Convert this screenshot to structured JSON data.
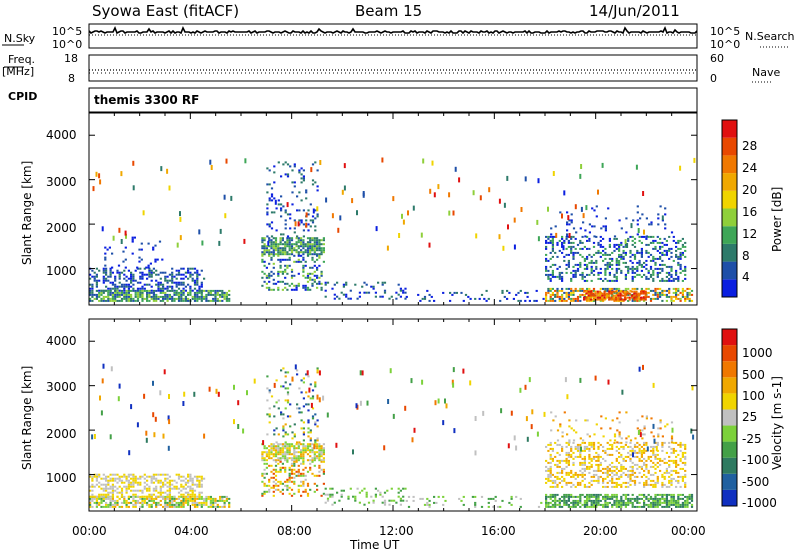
{
  "header": {
    "station": "Syowa East (fitACF)",
    "beam": "Beam 15",
    "date": "14/Jun/2011"
  },
  "status_panels": {
    "nsky_label": "N.Sky",
    "nsearch_label": "N.Search",
    "nsky_ticks": [
      "10^5",
      "10^0"
    ],
    "nsearch_ticks": [
      "10^5",
      "10^0"
    ],
    "freq_label": "Freq.",
    "freq_unit": "[MHz]",
    "freq_ticks": [
      "18",
      "8"
    ],
    "nave_label": "Nave",
    "nave_ticks": [
      "60",
      "0"
    ],
    "cpid_label": "CPID",
    "cpid_value": "themis 3300 RF"
  },
  "chart_data": [
    {
      "type": "heatmap",
      "name": "power",
      "ylabel": "Slant Range [km]",
      "xlabel": "Time UT",
      "x_ticks": [
        "00:00",
        "04:00",
        "08:00",
        "12:00",
        "16:00",
        "20:00",
        "00:00"
      ],
      "xlim_hours": [
        0,
        24
      ],
      "ylim": [
        180,
        4500
      ],
      "y_ticks": [
        1000,
        2000,
        3000,
        4000
      ],
      "colorbar": {
        "label": "Power [dB]",
        "ticks": [
          "4",
          "8",
          "12",
          "16",
          "20",
          "24",
          "28"
        ],
        "colors": [
          "#0a1fe0",
          "#1e4fa8",
          "#2d7a6a",
          "#3ea657",
          "#8fcf3a",
          "#f0d400",
          "#f0a800",
          "#f07800",
          "#e84800",
          "#e01010"
        ]
      },
      "regions": [
        {
          "t0": 0.0,
          "t1": 5.5,
          "r0": 250,
          "r1": 480,
          "level": [
            1,
            4
          ],
          "density": 0.75
        },
        {
          "t0": 0.0,
          "t1": 4.5,
          "r0": 480,
          "r1": 1000,
          "level": [
            0,
            2
          ],
          "density": 0.45
        },
        {
          "t0": 0.6,
          "t1": 3.0,
          "r0": 1000,
          "r1": 1700,
          "level": [
            0,
            1
          ],
          "density": 0.08
        },
        {
          "t0": 6.8,
          "t1": 9.3,
          "r0": 1300,
          "r1": 1700,
          "level": [
            1,
            4
          ],
          "density": 0.75
        },
        {
          "t0": 6.8,
          "t1": 9.3,
          "r0": 500,
          "r1": 1300,
          "level": [
            0,
            4
          ],
          "density": 0.35
        },
        {
          "t0": 7.0,
          "t1": 9.0,
          "r0": 1700,
          "r1": 3400,
          "level": [
            0,
            2
          ],
          "density": 0.15
        },
        {
          "t0": 9.3,
          "t1": 12.5,
          "r0": 300,
          "r1": 700,
          "level": [
            0,
            2
          ],
          "density": 0.2
        },
        {
          "t0": 12.5,
          "t1": 18.0,
          "r0": 250,
          "r1": 500,
          "level": [
            0,
            2
          ],
          "density": 0.12
        },
        {
          "t0": 18.0,
          "t1": 23.8,
          "r0": 250,
          "r1": 550,
          "level": [
            1,
            8
          ],
          "density": 0.6
        },
        {
          "t0": 19.5,
          "t1": 22.0,
          "r0": 280,
          "r1": 480,
          "level": [
            6,
            9
          ],
          "density": 0.8
        },
        {
          "t0": 18.0,
          "t1": 23.5,
          "r0": 700,
          "r1": 1700,
          "level": [
            0,
            3
          ],
          "density": 0.35
        },
        {
          "t0": 18.2,
          "t1": 23.0,
          "r0": 1700,
          "r1": 2400,
          "level": [
            0,
            1
          ],
          "density": 0.08
        }
      ]
    },
    {
      "type": "heatmap",
      "name": "velocity",
      "ylabel": "Slant Range [km]",
      "xlabel": "Time UT",
      "x_ticks": [
        "00:00",
        "04:00",
        "08:00",
        "12:00",
        "16:00",
        "20:00",
        "00:00"
      ],
      "xlim_hours": [
        0,
        24
      ],
      "ylim": [
        180,
        4500
      ],
      "y_ticks": [
        1000,
        2000,
        3000,
        4000
      ],
      "colorbar": {
        "label": "Velocity [m s-1]",
        "ticks": [
          "1000",
          "500",
          "100",
          "25",
          "-25",
          "-100",
          "-500",
          "-1000"
        ],
        "colors": [
          "#1030c0",
          "#2060a0",
          "#2e7a60",
          "#43a047",
          "#7cd13a",
          "#c0c0c0",
          "#f0d400",
          "#f0a800",
          "#f07800",
          "#e84800",
          "#e01010"
        ]
      },
      "regions": [
        {
          "t0": 0.0,
          "t1": 5.5,
          "r0": 250,
          "r1": 480,
          "level": [
            3,
            7
          ],
          "density": 0.7
        },
        {
          "t0": 0.0,
          "t1": 4.5,
          "r0": 480,
          "r1": 1000,
          "level": [
            5,
            6
          ],
          "density": 0.5
        },
        {
          "t0": 6.8,
          "t1": 9.3,
          "r0": 1300,
          "r1": 1700,
          "level": [
            4,
            7
          ],
          "density": 0.7
        },
        {
          "t0": 6.8,
          "t1": 9.3,
          "r0": 500,
          "r1": 1300,
          "level": [
            3,
            9
          ],
          "density": 0.35
        },
        {
          "t0": 7.0,
          "t1": 9.0,
          "r0": 1700,
          "r1": 3400,
          "level": [
            0,
            7
          ],
          "density": 0.15
        },
        {
          "t0": 9.3,
          "t1": 12.5,
          "r0": 300,
          "r1": 700,
          "level": [
            3,
            5
          ],
          "density": 0.2
        },
        {
          "t0": 12.5,
          "t1": 18.0,
          "r0": 250,
          "r1": 500,
          "level": [
            3,
            5
          ],
          "density": 0.12
        },
        {
          "t0": 18.0,
          "t1": 23.8,
          "r0": 250,
          "r1": 550,
          "level": [
            2,
            4
          ],
          "density": 0.7
        },
        {
          "t0": 18.0,
          "t1": 23.5,
          "r0": 700,
          "r1": 1700,
          "level": [
            5,
            7
          ],
          "density": 0.4
        },
        {
          "t0": 18.2,
          "t1": 23.0,
          "r0": 1700,
          "r1": 2400,
          "level": [
            5,
            8
          ],
          "density": 0.08
        }
      ]
    }
  ]
}
